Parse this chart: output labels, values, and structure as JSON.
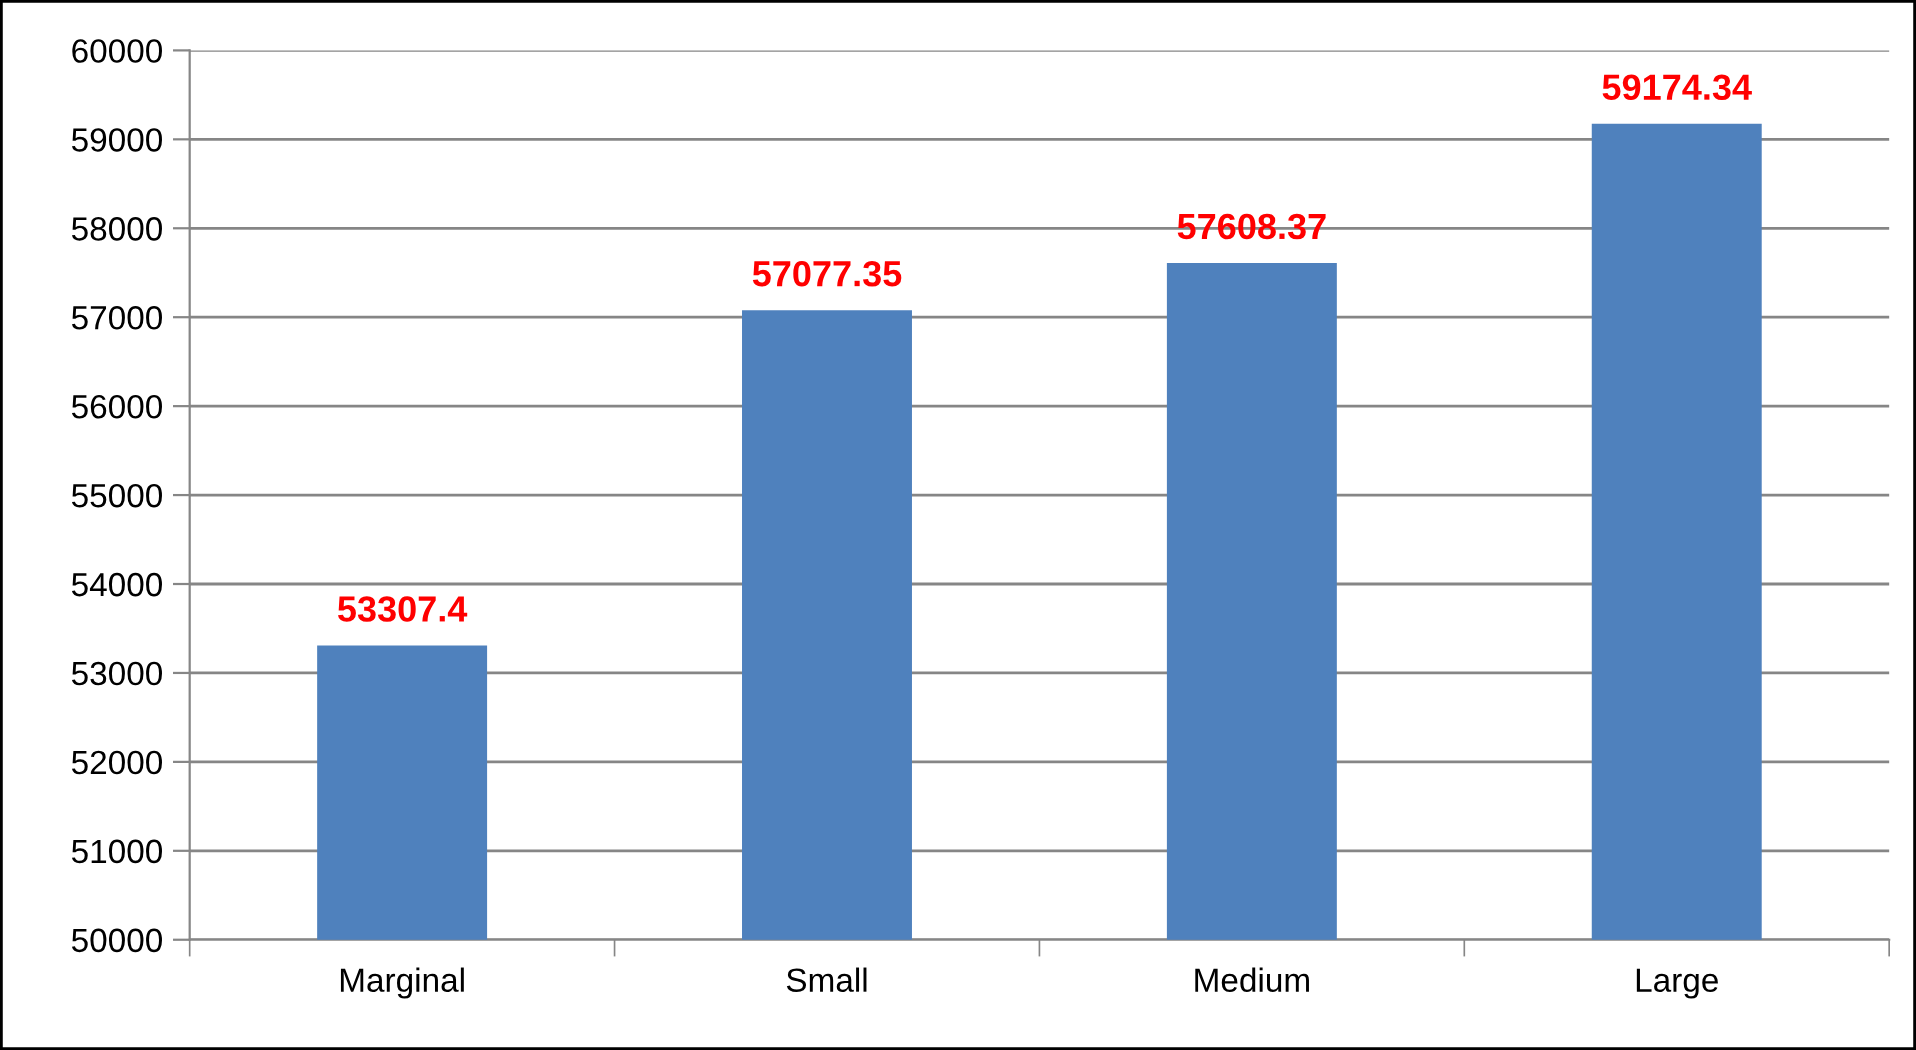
{
  "chart_data": {
    "type": "bar",
    "categories": [
      "Marginal",
      "Small",
      "Medium",
      "Large"
    ],
    "values": [
      53307.4,
      57077.35,
      57608.37,
      59174.34
    ],
    "color": "#4f81bd",
    "ylim": [
      50000,
      60000
    ],
    "yticks": [
      50000,
      51000,
      52000,
      53000,
      54000,
      55000,
      56000,
      57000,
      58000,
      59000,
      60000
    ],
    "grid": "y",
    "data_labels": true
  }
}
